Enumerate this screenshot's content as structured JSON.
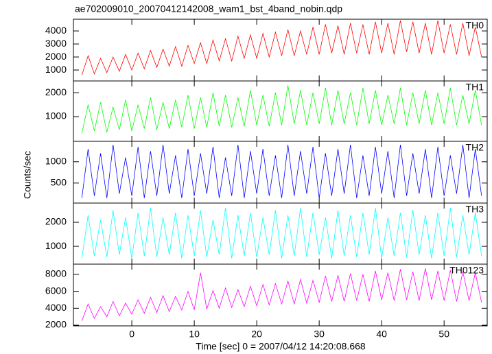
{
  "chart_data": {
    "type": "line",
    "title": "ae702009010_20070412142008_wam1_bst_4band_nobin.qdp",
    "xlabel": "Time [sec] 0 = 2007/04/12 14:20:08.668",
    "ylabel": "Counts/sec",
    "xlim": [
      -9.35,
      56.9
    ],
    "xticks": [
      0,
      10,
      20,
      30,
      40,
      50
    ],
    "x": [
      -8,
      -7,
      -6,
      -5,
      -4,
      -3,
      -2,
      -1,
      0,
      1,
      2,
      3,
      4,
      5,
      6,
      7,
      8,
      9,
      10,
      11,
      12,
      13,
      14,
      15,
      16,
      17,
      18,
      19,
      20,
      21,
      22,
      23,
      24,
      25,
      26,
      27,
      28,
      29,
      30,
      31,
      32,
      33,
      34,
      35,
      36,
      37,
      38,
      39,
      40,
      41,
      42,
      43,
      44,
      45,
      46,
      47,
      48,
      49,
      50,
      51,
      52,
      53,
      54,
      55,
      56
    ],
    "series": [
      {
        "name": "TH0",
        "color": "#ff0000",
        "ylim": [
          160,
          4900
        ],
        "yticks": [
          1000,
          2000,
          3000,
          4000
        ],
        "values": [
          600,
          2100,
          700,
          1900,
          800,
          2000,
          900,
          2200,
          1000,
          2300,
          1100,
          2500,
          1200,
          2600,
          1300,
          2800,
          1300,
          2900,
          1500,
          3100,
          1500,
          3300,
          1700,
          3400,
          1700,
          3600,
          1900,
          3700,
          1900,
          3800,
          2000,
          3900,
          2100,
          4100,
          2100,
          4000,
          2200,
          4300,
          2200,
          4500,
          2300,
          4400,
          2200,
          4600,
          2300,
          4500,
          2200,
          4700,
          2300,
          4600,
          2200,
          4800,
          2400,
          4700,
          2300,
          4600,
          2200,
          4800,
          2300,
          4500,
          2200,
          4600,
          2100,
          4300,
          2000
        ]
      },
      {
        "name": "TH1",
        "color": "#00ff00",
        "ylim": [
          -30,
          2490
        ],
        "yticks": [
          1000,
          2000
        ],
        "values": [
          300,
          1500,
          400,
          1600,
          350,
          1400,
          450,
          1700,
          400,
          1500,
          500,
          1800,
          450,
          1600,
          500,
          1700,
          550,
          1900,
          500,
          1800,
          550,
          2000,
          600,
          1900,
          550,
          1800,
          600,
          2100,
          650,
          1900,
          600,
          2000,
          650,
          2300,
          700,
          2100,
          650,
          2000,
          700,
          2200,
          650,
          2100,
          700,
          2000,
          650,
          2200,
          700,
          2100,
          650,
          1900,
          700,
          2200,
          650,
          2000,
          700,
          2100,
          650,
          2000,
          700,
          2200,
          650,
          1900,
          700,
          2100,
          650
        ]
      },
      {
        "name": "TH2",
        "color": "#0000ff",
        "ylim": [
          30,
          1480
        ],
        "yticks": [
          500,
          1000
        ],
        "values": [
          150,
          1300,
          200,
          1200,
          150,
          1400,
          250,
          1100,
          200,
          1350,
          150,
          1250,
          200,
          1400,
          250,
          1150,
          150,
          1300,
          200,
          1200,
          250,
          1350,
          150,
          1100,
          200,
          1400,
          150,
          1250,
          250,
          1300,
          200,
          1150,
          150,
          1400,
          200,
          1250,
          250,
          1350,
          150,
          1200,
          200,
          1300,
          250,
          1400,
          150,
          1150,
          200,
          1350,
          250,
          1250,
          150,
          1400,
          200,
          1200,
          250,
          1300,
          150,
          1350,
          200,
          1150,
          250,
          1400,
          150,
          1300,
          200
        ]
      },
      {
        "name": "TH3",
        "color": "#00ffff",
        "ylim": [
          260,
          2800
        ],
        "yticks": [
          1000,
          2000
        ],
        "values": [
          500,
          2300,
          600,
          2100,
          550,
          2500,
          650,
          2200,
          500,
          2400,
          600,
          2600,
          550,
          2200,
          650,
          2400,
          500,
          2300,
          600,
          2500,
          550,
          2100,
          650,
          2600,
          500,
          2300,
          600,
          2400,
          550,
          2200,
          650,
          2500,
          500,
          2300,
          600,
          2600,
          550,
          2400,
          650,
          2200,
          500,
          2500,
          600,
          2300,
          550,
          2400,
          650,
          2600,
          500,
          2200,
          600,
          2400,
          550,
          2500,
          650,
          2300,
          500,
          2400,
          600,
          2600,
          550,
          2300,
          650,
          2400,
          600
        ]
      },
      {
        "name": "TH0123",
        "color": "#ff00ff",
        "ylim": [
          1920,
          9210
        ],
        "yticks": [
          2000,
          4000,
          6000,
          8000
        ],
        "values": [
          2500,
          4500,
          2800,
          4200,
          3000,
          4800,
          3100,
          4600,
          3300,
          5000,
          3400,
          5300,
          3500,
          5500,
          3600,
          5400,
          3800,
          6000,
          3800,
          8200,
          3900,
          6100,
          4000,
          6400,
          4100,
          6200,
          4200,
          6600,
          4300,
          6800,
          4400,
          6900,
          4500,
          7200,
          4500,
          7400,
          4600,
          7300,
          4700,
          7800,
          4800,
          7900,
          4800,
          8100,
          4900,
          8000,
          4800,
          8400,
          5000,
          8200,
          4900,
          8600,
          5000,
          8300,
          4900,
          8700,
          5000,
          8400,
          4900,
          8500,
          4800,
          8300,
          4900,
          8200,
          4700
        ]
      }
    ]
  }
}
